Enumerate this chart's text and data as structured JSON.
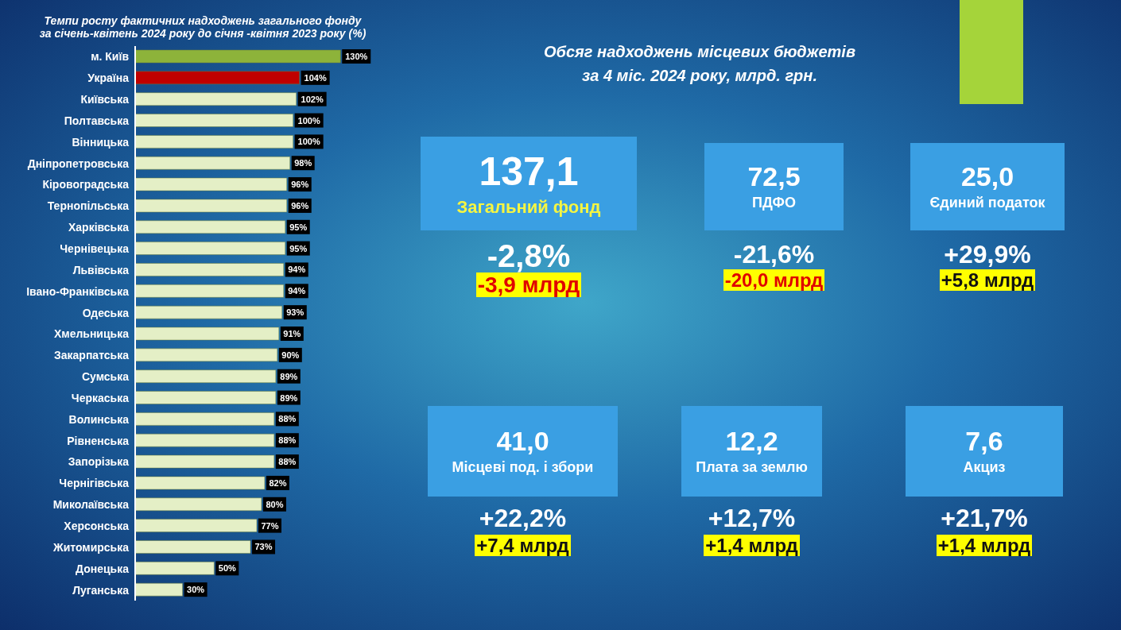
{
  "chart_data": [
    {
      "type": "bar",
      "orientation": "horizontal",
      "title": "Темпи росту фактичних надходжень загального фонду\nза січень-квітень 2024 року до січня -квітня 2023 року (%)",
      "categories": [
        "м. Київ",
        "Україна",
        "Київська",
        "Полтавська",
        "Вінницька",
        "Дніпропетровська",
        "Кіровоградська",
        "Тернопільська",
        "Харківська",
        "Чернівецька",
        "Львівська",
        "Івано-Франківська",
        "Одеська",
        "Хмельницька",
        "Закарпатська",
        "Сумська",
        "Черкаська",
        "Волинська",
        "Рівненська",
        "Запорізька",
        "Чернігівська",
        "Миколаївська",
        "Херсонська",
        "Житомирська",
        "Донецька",
        "Луганська"
      ],
      "values": [
        130,
        104,
        102,
        100,
        100,
        98,
        96,
        96,
        95,
        95,
        94,
        94,
        93,
        91,
        90,
        89,
        89,
        88,
        88,
        88,
        82,
        80,
        77,
        73,
        50,
        30
      ],
      "value_labels": [
        "130%",
        "104%",
        "102%",
        "100%",
        "100%",
        "98%",
        "96%",
        "96%",
        "95%",
        "95%",
        "94%",
        "94%",
        "93%",
        "91%",
        "90%",
        "89%",
        "89%",
        "88%",
        "88%",
        "88%",
        "82%",
        "80%",
        "77%",
        "73%",
        "50%",
        "30%"
      ],
      "colors": [
        "#8db33a",
        "#c00000",
        "#e4efc6",
        "#e4efc6",
        "#e4efc6",
        "#e4efc6",
        "#e4efc6",
        "#e4efc6",
        "#e4efc6",
        "#e4efc6",
        "#e4efc6",
        "#e4efc6",
        "#e4efc6",
        "#e4efc6",
        "#e4efc6",
        "#e4efc6",
        "#e4efc6",
        "#e4efc6",
        "#e4efc6",
        "#e4efc6",
        "#e4efc6",
        "#e4efc6",
        "#e4efc6",
        "#e4efc6",
        "#e4efc6",
        "#e4efc6"
      ]
    },
    {
      "type": "other",
      "title": "Обсяг надходжень місцевих бюджетів\nза 4 міс. 2024 року, млрд. грн.",
      "color": "#3a9fe3",
      "annotations": [
        "137,1",
        "Загальний фонд",
        "-2,8%",
        "-3,9 млрд",
        "72,5",
        "ПДФО",
        "-21,6%",
        "-20,0 млрд",
        "25,0",
        "Єдиний податок",
        "+29,9%",
        "+5,8 млрд",
        "41,0",
        "Місцеві под. і збори",
        "+22,2%",
        "+7,4 млрд",
        "12,2",
        "Плата за землю",
        "+12,7%",
        "+1,4 млрд",
        "7,6",
        "Акциз",
        "+21,7%",
        "+1,4 млрд"
      ],
      "colors": [
        "#e00000",
        "#e00000",
        "#111111",
        "#111111",
        "#111111",
        "#111111"
      ]
    }
  ]
}
